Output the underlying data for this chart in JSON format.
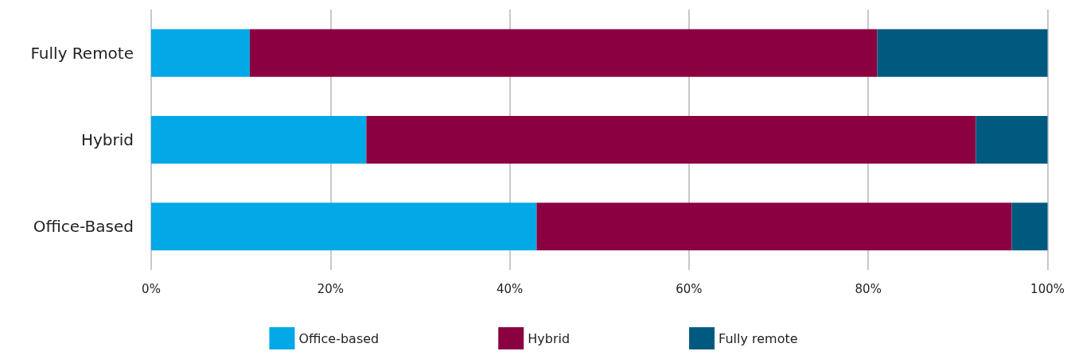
{
  "chart_data": {
    "type": "bar",
    "orientation": "horizontal",
    "stacked": true,
    "categories": [
      "Fully Remote",
      "Hybrid",
      "Office-Based"
    ],
    "series": [
      {
        "name": "Office-based",
        "color": "#02a9e6",
        "values": [
          11,
          24,
          43
        ]
      },
      {
        "name": "Hybrid",
        "color": "#8b0040",
        "values": [
          70,
          68,
          53
        ]
      },
      {
        "name": "Fully remote",
        "color": "#005a80",
        "values": [
          19,
          8,
          4
        ]
      }
    ],
    "xlim": [
      0,
      100
    ],
    "xticks": [
      {
        "value": 0,
        "label": "0%"
      },
      {
        "value": 20,
        "label": "20%"
      },
      {
        "value": 40,
        "label": "40%"
      },
      {
        "value": 60,
        "label": "60%"
      },
      {
        "value": 80,
        "label": "80%"
      },
      {
        "value": 100,
        "label": "100%"
      }
    ],
    "grid": "x",
    "legend": "bottom"
  }
}
